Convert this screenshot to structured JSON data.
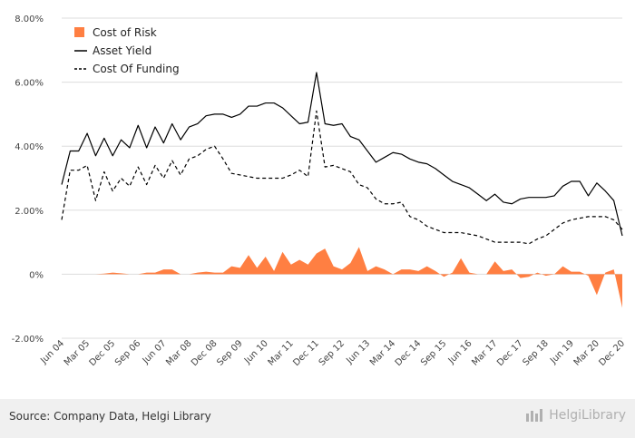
{
  "chart_data": {
    "type": "line",
    "title": "",
    "xlabel": "",
    "ylabel": "",
    "ylim": [
      -0.02,
      0.08
    ],
    "y_ticks": [
      "8.00%",
      "6.00%",
      "4.00%",
      "2.00%",
      "0%",
      "-2.00%"
    ],
    "y_tick_values": [
      0.08,
      0.06,
      0.04,
      0.02,
      0,
      -0.02
    ],
    "grid": true,
    "legend_position": "top-left",
    "x_tick_labels": [
      "Jun 04",
      "Mar 05",
      "Dec 05",
      "Sep 06",
      "Jun 07",
      "Mar 08",
      "Dec 08",
      "Sep 09",
      "Jun 10",
      "Mar 11",
      "Dec 11",
      "Sep 12",
      "Jun 13",
      "Mar 14",
      "Dec 14",
      "Sep 15",
      "Jun 16",
      "Mar 17",
      "Dec 17",
      "Sep 18",
      "Jun 19",
      "Mar 20",
      "Dec 20"
    ],
    "x": [
      "Jun 04",
      "Sep 04",
      "Dec 04",
      "Mar 05",
      "Jun 05",
      "Sep 05",
      "Dec 05",
      "Mar 06",
      "Jun 06",
      "Sep 06",
      "Dec 06",
      "Mar 07",
      "Jun 07",
      "Sep 07",
      "Dec 07",
      "Mar 08",
      "Jun 08",
      "Sep 08",
      "Dec 08",
      "Mar 09",
      "Jun 09",
      "Sep 09",
      "Dec 09",
      "Mar 10",
      "Jun 10",
      "Sep 10",
      "Dec 10",
      "Mar 11",
      "Jun 11",
      "Sep 11",
      "Dec 11",
      "Mar 12",
      "Jun 12",
      "Sep 12",
      "Dec 12",
      "Mar 13",
      "Jun 13",
      "Sep 13",
      "Dec 13",
      "Mar 14",
      "Jun 14",
      "Sep 14",
      "Dec 14",
      "Mar 15",
      "Jun 15",
      "Sep 15",
      "Dec 15",
      "Mar 16",
      "Jun 16",
      "Sep 16",
      "Dec 16",
      "Mar 17",
      "Jun 17",
      "Sep 17",
      "Dec 17",
      "Mar 18",
      "Jun 18",
      "Sep 18",
      "Dec 18",
      "Mar 19",
      "Jun 19",
      "Sep 19",
      "Dec 19",
      "Mar 20",
      "Jun 20",
      "Sep 20",
      "Dec 20"
    ],
    "series": [
      {
        "name": "Cost of Risk",
        "kind": "area",
        "color": "#FF7F42",
        "values": [
          0.0,
          0.0,
          0.0,
          0.0,
          0.0,
          0.0002,
          0.0005,
          0.0003,
          0.0,
          0.0,
          0.0005,
          0.0005,
          0.0015,
          0.0015,
          0.0,
          0.0,
          0.0005,
          0.0008,
          0.0005,
          0.0005,
          0.0025,
          0.002,
          0.006,
          0.002,
          0.0055,
          0.001,
          0.007,
          0.003,
          0.0045,
          0.003,
          0.0065,
          0.008,
          0.0025,
          0.0015,
          0.0035,
          0.0085,
          0.001,
          0.0025,
          0.0015,
          0.0,
          0.0015,
          0.0015,
          0.001,
          0.0025,
          0.001,
          -0.0008,
          0.0005,
          0.005,
          0.0005,
          0.0,
          0.0,
          0.004,
          0.001,
          0.0015,
          -0.0012,
          -0.0008,
          0.0005,
          -0.0005,
          0.0,
          0.0025,
          0.0008,
          0.0008,
          -0.0005,
          -0.0065,
          0.0005,
          0.0015,
          -0.0105
        ]
      },
      {
        "name": "Asset Yield",
        "kind": "line",
        "color": "#000000",
        "values": [
          0.028,
          0.0385,
          0.0385,
          0.044,
          0.037,
          0.0425,
          0.037,
          0.042,
          0.0395,
          0.0465,
          0.0395,
          0.046,
          0.041,
          0.047,
          0.042,
          0.046,
          0.047,
          0.0495,
          0.05,
          0.05,
          0.049,
          0.05,
          0.0525,
          0.0525,
          0.0535,
          0.0535,
          0.052,
          0.0495,
          0.047,
          0.0475,
          0.063,
          0.047,
          0.0465,
          0.047,
          0.043,
          0.042,
          0.0385,
          0.035,
          0.0365,
          0.038,
          0.0375,
          0.036,
          0.035,
          0.0345,
          0.033,
          0.031,
          0.029,
          0.028,
          0.027,
          0.025,
          0.023,
          0.025,
          0.0225,
          0.022,
          0.0235,
          0.024,
          0.024,
          0.024,
          0.0245,
          0.0275,
          0.029,
          0.029,
          0.0245,
          0.0285,
          0.026,
          0.023,
          0.012
        ]
      },
      {
        "name": "Cost Of Funding",
        "kind": "dashed",
        "color": "#000000",
        "values": [
          0.017,
          0.0325,
          0.0325,
          0.034,
          0.023,
          0.032,
          0.026,
          0.03,
          0.0275,
          0.0335,
          0.028,
          0.034,
          0.03,
          0.0355,
          0.031,
          0.036,
          0.037,
          0.039,
          0.04,
          0.036,
          0.0315,
          0.031,
          0.0305,
          0.03,
          0.03,
          0.03,
          0.03,
          0.031,
          0.0325,
          0.0305,
          0.051,
          0.0335,
          0.034,
          0.033,
          0.032,
          0.028,
          0.027,
          0.0235,
          0.022,
          0.022,
          0.0225,
          0.018,
          0.017,
          0.015,
          0.014,
          0.013,
          0.013,
          0.013,
          0.0125,
          0.012,
          0.011,
          0.01,
          0.01,
          0.01,
          0.01,
          0.0095,
          0.011,
          0.012,
          0.014,
          0.016,
          0.017,
          0.0175,
          0.018,
          0.018,
          0.018,
          0.017,
          0.014
        ]
      }
    ]
  },
  "legend": [
    {
      "label": "Cost of Risk",
      "swatch": "area",
      "color": "#FF7F42"
    },
    {
      "label": "Asset Yield",
      "swatch": "solid",
      "color": "#000000"
    },
    {
      "label": "Cost Of Funding",
      "swatch": "dashed",
      "color": "#000000"
    }
  ],
  "footer": {
    "source": "Source: Company Data, Helgi Library",
    "brand": "HelgiLibrary"
  },
  "icons": {
    "brand_mark": "helgi-library-logo-icon"
  },
  "colors": {
    "grid": "#dddddd",
    "footer_bg": "#f0f0f0",
    "accent": "#FF7F42"
  }
}
